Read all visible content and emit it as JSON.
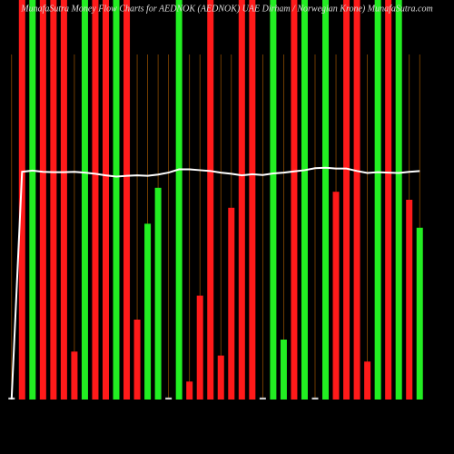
{
  "chart_data": {
    "type": "bar",
    "title": "MunafaSutra Money Flow Charts for AEDNOK (AEDNOK) UAE Dirham / Norwegian Krone) MunafaSutra.com",
    "values": [
      0.5,
      100,
      100,
      100,
      100,
      100,
      12,
      100,
      100,
      100,
      100,
      100,
      20,
      44,
      53,
      0.5,
      100,
      4.5,
      26,
      100,
      11,
      48,
      100,
      100,
      0.5,
      100,
      15,
      100,
      100,
      0.5,
      100,
      52,
      100,
      100,
      9.5,
      100,
      100,
      100,
      50,
      43
    ],
    "colors": [
      "#cccccc",
      "#ff1a1a",
      "#22ee22",
      "#ff1a1a",
      "#ff1a1a",
      "#ff1a1a",
      "#ff1a1a",
      "#22ee22",
      "#ff1a1a",
      "#ff1a1a",
      "#22ee22",
      "#ff1a1a",
      "#ff1a1a",
      "#22ee22",
      "#22ee22",
      "#cccccc",
      "#22ee22",
      "#ff1a1a",
      "#ff1a1a",
      "#ff1a1a",
      "#ff1a1a",
      "#ff1a1a",
      "#ff1a1a",
      "#ff1a1a",
      "#cccccc",
      "#22ee22",
      "#22ee22",
      "#ff1a1a",
      "#22ee22",
      "#cccccc",
      "#22ee22",
      "#ff1a1a",
      "#ff1a1a",
      "#ff1a1a",
      "#ff1a1a",
      "#22ee22",
      "#ff1a1a",
      "#22ee22",
      "#ff1a1a",
      "#22ee22"
    ],
    "line": {
      "color": "#ffffff",
      "values": [
        0,
        57,
        57.3,
        57,
        56.9,
        56.9,
        57,
        56.8,
        56.5,
        56.1,
        55.8,
        56,
        56.1,
        56,
        56.3,
        56.8,
        57.6,
        57.6,
        57.4,
        57.2,
        56.8,
        56.5,
        56.1,
        56.4,
        56.2,
        56.6,
        56.8,
        57.1,
        57.4,
        57.9,
        58,
        57.8,
        57.8,
        57.2,
        56.7,
        56.9,
        56.8,
        56.7,
        57,
        57.2
      ]
    },
    "ylim": [
      0,
      100
    ],
    "grid": true
  }
}
